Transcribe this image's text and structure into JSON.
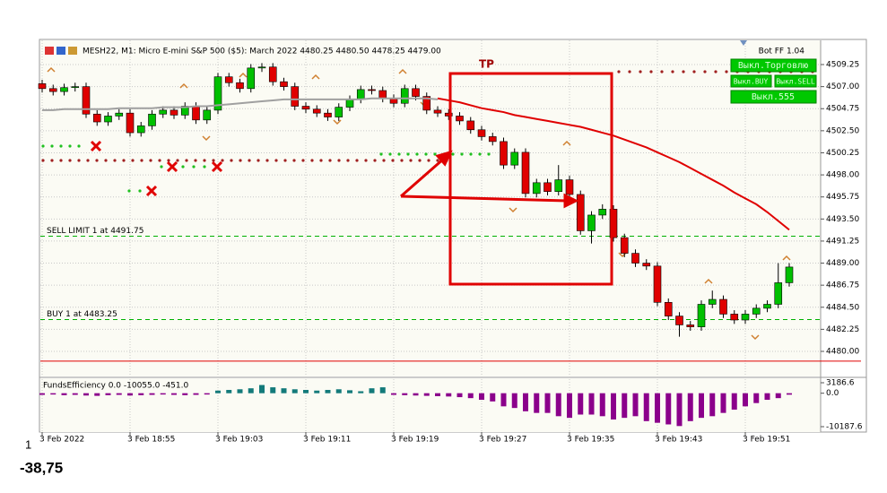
{
  "header": {
    "symbol": "MESH22, M1:  Micro E-mini S&P 500 ($5): March 2022  4480.25 4480.50 4478.25 4479.00",
    "robot": "Bot FF 1.04",
    "buttons": [
      "Выкл.Торговлю",
      "Выкл.BUY",
      "Выкл.SELL",
      "Выкл.555"
    ],
    "tp": "TP"
  },
  "footer": {
    "count": "1",
    "result": "-38,75"
  },
  "chart_data": [
    {
      "type": "candlestick",
      "categories": [
        "3 Feb 2022",
        null,
        null,
        null,
        null,
        null,
        null,
        null,
        "3 Feb 18:55",
        null,
        null,
        null,
        null,
        null,
        null,
        null,
        "3 Feb 19:03",
        null,
        null,
        null,
        null,
        null,
        null,
        null,
        "3 Feb 19:11",
        null,
        null,
        null,
        null,
        null,
        null,
        null,
        "3 Feb 19:19",
        null,
        null,
        null,
        null,
        null,
        null,
        null,
        "3 Feb 19:27",
        null,
        null,
        null,
        null,
        null,
        null,
        null,
        "3 Feb 19:35",
        null,
        null,
        null,
        null,
        null,
        null,
        null,
        "3 Feb 19:43",
        null,
        null,
        null,
        null,
        null,
        null,
        null,
        "3 Feb 19:51",
        null,
        null,
        null,
        null
      ],
      "open": [
        4507.3,
        4506.8,
        4506.5,
        4506.9,
        4507.0,
        4504.2,
        4503.4,
        4504.0,
        4504.3,
        4502.3,
        4503.0,
        4504.2,
        4504.6,
        4504.1,
        4505.0,
        4503.6,
        4504.6,
        4508.0,
        4507.4,
        4506.8,
        4508.9,
        4509.0,
        4507.5,
        4507.0,
        4505.0,
        4504.7,
        4504.3,
        4503.9,
        4504.9,
        4505.7,
        4506.7,
        4506.6,
        4505.8,
        4505.3,
        4506.8,
        4506.0,
        4504.6,
        4504.3,
        4504.0,
        4503.5,
        4502.6,
        4501.9,
        4501.4,
        4499.0,
        4500.3,
        4496.1,
        4497.2,
        4496.3,
        4497.5,
        4496.0,
        4492.3,
        4493.9,
        4494.5,
        4491.6,
        4490.0,
        4489.0,
        4488.7,
        4485.0,
        4483.6,
        4482.7,
        4482.5,
        4484.8,
        4485.3,
        4483.8,
        4483.2,
        4483.8,
        4484.4,
        4484.8,
        4487.0
      ],
      "high": [
        4507.7,
        4507.2,
        4507.3,
        4507.4,
        4507.4,
        4504.6,
        4504.4,
        4504.7,
        4504.7,
        4503.4,
        4504.6,
        4505.0,
        4505.0,
        4505.4,
        4505.4,
        4505.0,
        4508.4,
        4508.4,
        4507.8,
        4509.3,
        4509.4,
        4509.4,
        4507.9,
        4507.4,
        4505.4,
        4505.1,
        4504.7,
        4505.3,
        4506.1,
        4507.1,
        4507.1,
        4507.0,
        4506.2,
        4507.2,
        4507.2,
        4506.4,
        4505.0,
        4504.7,
        4504.4,
        4503.9,
        4503.0,
        4502.3,
        4501.8,
        4500.7,
        4500.7,
        4497.6,
        4497.6,
        4499.0,
        4497.9,
        4496.4,
        4494.3,
        4495.0,
        4494.9,
        4492.0,
        4490.4,
        4489.4,
        4489.1,
        4485.4,
        4484.0,
        4483.1,
        4485.2,
        4486.2,
        4485.7,
        4484.2,
        4484.2,
        4484.8,
        4485.2,
        4489.0,
        4489.0
      ],
      "low": [
        4506.4,
        4506.1,
        4506.1,
        4506.5,
        4503.8,
        4503.0,
        4503.0,
        4503.6,
        4501.9,
        4501.9,
        4502.6,
        4503.8,
        4503.7,
        4503.7,
        4503.2,
        4503.2,
        4504.2,
        4507.0,
        4506.4,
        4506.4,
        4508.5,
        4507.1,
        4506.6,
        4504.6,
        4504.3,
        4503.9,
        4503.5,
        4503.5,
        4504.5,
        4505.3,
        4506.2,
        4505.4,
        4504.9,
        4504.9,
        4505.6,
        4504.2,
        4503.9,
        4503.6,
        4503.1,
        4502.2,
        4501.5,
        4501.0,
        4498.6,
        4498.6,
        4495.7,
        4495.7,
        4495.9,
        4495.9,
        4495.6,
        4491.9,
        4491.0,
        4493.5,
        4491.2,
        4489.6,
        4488.6,
        4488.3,
        4484.6,
        4483.2,
        4481.5,
        4482.1,
        4482.1,
        4484.4,
        4483.4,
        4482.8,
        4482.8,
        4483.4,
        4484.0,
        4484.4,
        4486.6
      ],
      "close": [
        4506.8,
        4506.5,
        4506.9,
        4507.0,
        4504.2,
        4503.4,
        4504.0,
        4504.3,
        4502.3,
        4503.0,
        4504.2,
        4504.6,
        4504.1,
        4505.0,
        4503.6,
        4504.6,
        4508.0,
        4507.4,
        4506.8,
        4508.9,
        4509.0,
        4507.5,
        4507.0,
        4505.0,
        4504.7,
        4504.3,
        4503.9,
        4504.9,
        4505.7,
        4506.7,
        4506.6,
        4505.8,
        4505.3,
        4506.8,
        4506.0,
        4504.6,
        4504.3,
        4504.0,
        4503.5,
        4502.6,
        4501.9,
        4501.4,
        4499.0,
        4500.3,
        4496.1,
        4497.2,
        4496.3,
        4497.5,
        4496.0,
        4492.3,
        4493.9,
        4494.5,
        4491.6,
        4490.0,
        4489.0,
        4488.7,
        4485.0,
        4483.6,
        4482.7,
        4482.5,
        4484.8,
        4485.3,
        4483.8,
        4483.2,
        4483.8,
        4484.4,
        4484.8,
        4487.0,
        4488.6
      ],
      "up_color": "#00c000",
      "down_color": "#e00000",
      "lines": [
        {
          "color": "#a0a0a0",
          "values": [
            4504.6,
            4504.6,
            4504.7,
            4504.7,
            4504.7,
            4504.7,
            4504.7,
            4504.8,
            4504.8,
            4504.8,
            4504.8,
            4504.9,
            4504.9,
            4504.9,
            4505.0,
            4505.0,
            4505.1,
            4505.2,
            4505.3,
            4505.4,
            4505.5,
            4505.6,
            4505.7,
            4505.7,
            4505.7,
            4505.7,
            4505.7,
            4505.7,
            4505.7,
            4505.7,
            4505.8,
            4505.8,
            4505.8,
            4505.8,
            4505.8,
            4505.8,
            4505.7,
            null,
            null,
            null,
            null,
            null,
            null,
            null,
            null,
            null,
            null,
            null,
            null,
            null,
            null,
            null,
            null,
            null,
            null,
            null,
            null,
            null,
            null,
            null,
            null,
            null,
            null,
            null,
            null,
            null,
            null,
            null,
            null
          ]
        },
        {
          "color": "#e00000",
          "values": [
            null,
            null,
            null,
            null,
            null,
            null,
            null,
            null,
            null,
            null,
            null,
            null,
            null,
            null,
            null,
            null,
            null,
            null,
            null,
            null,
            null,
            null,
            null,
            null,
            null,
            null,
            null,
            null,
            null,
            null,
            null,
            null,
            null,
            null,
            null,
            null,
            4505.8,
            4505.6,
            4505.4,
            4505.1,
            4504.8,
            4504.6,
            4504.4,
            4504.1,
            4503.9,
            4503.7,
            4503.5,
            4503.3,
            4503.1,
            4502.9,
            4502.6,
            4502.3,
            4502.0,
            4501.6,
            4501.2,
            4500.8,
            4500.3,
            4499.8,
            4499.3,
            4498.7,
            4498.1,
            4497.5,
            4496.9,
            4496.2,
            4495.6,
            4495.0,
            4494.2,
            4493.3,
            4492.4
          ]
        }
      ],
      "levels": [
        {
          "label": "SELL LIMIT 1 at 4491.75",
          "value": 4491.75,
          "color": "#00b000"
        },
        {
          "label": "BUY 1 at 4483.25",
          "value": 4483.25,
          "color": "#00b000"
        }
      ],
      "price_line": 4479.0,
      "ylim": [
        4477.44,
        4511.72
      ],
      "yticks": [
        4509.25,
        {
          "value": 4507,
          "label": "4507.00"
        },
        4504.75,
        {
          "value": 4502.5,
          "label": "4502.50"
        },
        4500.25,
        {
          "value": 4498,
          "label": "4498.00"
        },
        4495.75,
        {
          "value": 4493.5,
          "label": "4493.50"
        },
        4491.25,
        {
          "value": 4489,
          "label": "4489.00"
        },
        4486.75,
        {
          "value": 4484.5,
          "label": "4484.50"
        },
        4482.25,
        {
          "value": 4480,
          "label": "4480.00"
        }
      ],
      "grid": true
    },
    {
      "type": "bar",
      "title": "FundsEfficiency 0.0 -10055.0 -451.0",
      "values": [
        -500,
        -400,
        -600,
        -500,
        -700,
        -800,
        -600,
        -500,
        -700,
        -600,
        -500,
        -400,
        -500,
        -600,
        -500,
        -400,
        800,
        1000,
        1200,
        1500,
        2500,
        1800,
        1500,
        1200,
        1000,
        800,
        1000,
        1200,
        900,
        600,
        1500,
        1800,
        -500,
        -600,
        -700,
        -800,
        -900,
        -1000,
        -1200,
        -1500,
        -2000,
        -2500,
        -4000,
        -4500,
        -5500,
        -6000,
        -6000,
        -7000,
        -7500,
        -6500,
        -6500,
        -7000,
        -8000,
        -7500,
        -7000,
        -8500,
        -9000,
        -9500,
        -10000,
        -8500,
        -7500,
        -7000,
        -6000,
        -5000,
        -4000,
        -3000,
        -2000,
        -1500,
        -451
      ],
      "positive_color": "#137a7a",
      "negative_color": "#8b008b",
      "ylim": [
        -11826,
        4005
      ],
      "yticks": [
        3186.6,
        {
          "value": 0,
          "label": "0.0"
        },
        -10187.6
      ]
    }
  ]
}
